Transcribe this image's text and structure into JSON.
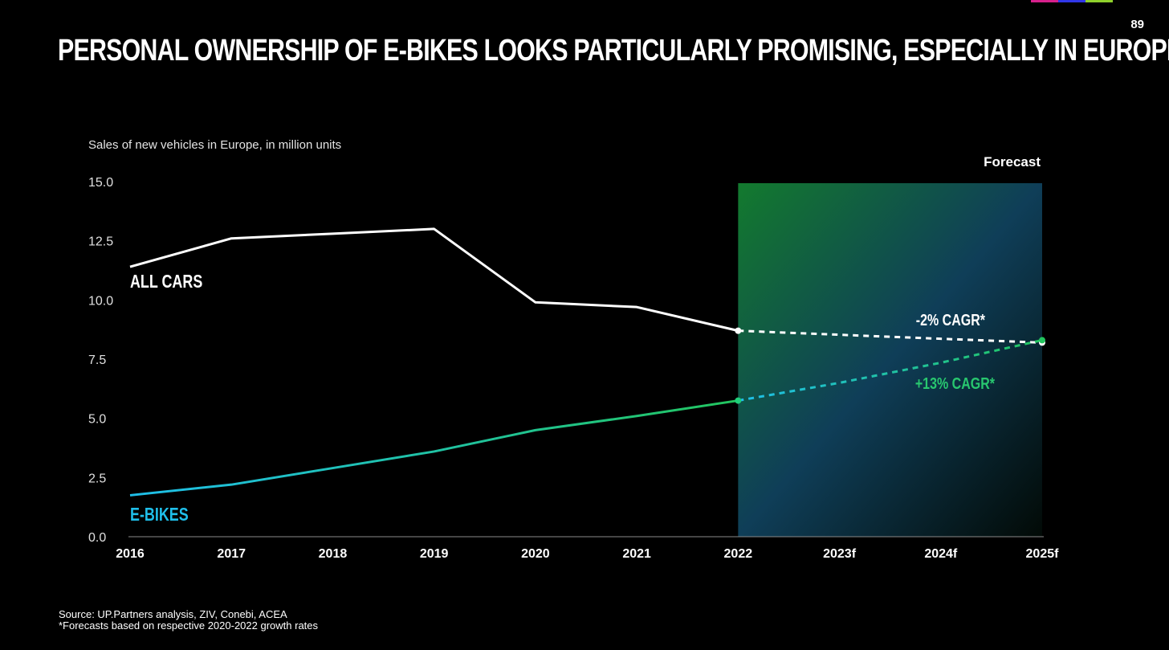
{
  "page_number": "89",
  "title": "PERSONAL OWNERSHIP OF E-BIKES LOOKS PARTICULARLY PROMISING, ESPECIALLY IN EUROPE",
  "top_bar_colors": [
    "#d6208b",
    "#3037e8",
    "#8fd02b"
  ],
  "chart_data": {
    "type": "line",
    "title": "",
    "subtitle": "Sales of new vehicles in Europe, in million units",
    "x": [
      "2016",
      "2017",
      "2018",
      "2019",
      "2020",
      "2021",
      "2022",
      "2023f",
      "2024f",
      "2025f"
    ],
    "ylim": [
      0,
      15
    ],
    "yticks": [
      "0.0",
      "2.5",
      "5.0",
      "7.5",
      "10.0",
      "12.5",
      "15.0"
    ],
    "grid": false,
    "forecast": {
      "label": "Forecast",
      "from": "2022",
      "to": "2025f"
    },
    "series": [
      {
        "name": "ALL CARS",
        "color": "#ffffff",
        "values": [
          11.4,
          12.6,
          12.8,
          13.0,
          9.9,
          9.7,
          8.7,
          8.53,
          8.36,
          8.2
        ],
        "forecast_label": "-2% CAGR*",
        "forecast_color": "#ffffff"
      },
      {
        "name": "E-BIKES",
        "color": "#1fbfea",
        "color_end": "#22c55e",
        "values": [
          1.75,
          2.2,
          2.9,
          3.6,
          4.5,
          5.1,
          5.75,
          6.5,
          7.35,
          8.3
        ],
        "forecast_label": "+13% CAGR*",
        "forecast_color": "#28c76f"
      }
    ]
  },
  "footer": {
    "source": "Source: UP.Partners analysis, ZIV, Conebi, ACEA",
    "note": "*Forecasts based on respective 2020-2022 growth rates"
  }
}
